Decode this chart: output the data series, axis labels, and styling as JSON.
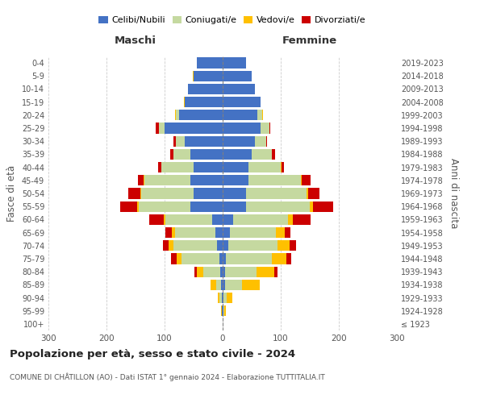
{
  "age_groups": [
    "100+",
    "95-99",
    "90-94",
    "85-89",
    "80-84",
    "75-79",
    "70-74",
    "65-69",
    "60-64",
    "55-59",
    "50-54",
    "45-49",
    "40-44",
    "35-39",
    "30-34",
    "25-29",
    "20-24",
    "15-19",
    "10-14",
    "5-9",
    "0-4"
  ],
  "birth_years": [
    "≤ 1923",
    "1924-1928",
    "1929-1933",
    "1934-1938",
    "1939-1943",
    "1944-1948",
    "1949-1953",
    "1954-1958",
    "1959-1963",
    "1964-1968",
    "1969-1973",
    "1974-1978",
    "1979-1983",
    "1984-1988",
    "1989-1993",
    "1994-1998",
    "1999-2003",
    "2004-2008",
    "2009-2013",
    "2014-2018",
    "2019-2023"
  ],
  "male": {
    "single": [
      0,
      1,
      2,
      3,
      4,
      6,
      10,
      12,
      18,
      55,
      50,
      55,
      50,
      55,
      65,
      100,
      75,
      65,
      60,
      50,
      45
    ],
    "married": [
      0,
      1,
      3,
      8,
      30,
      65,
      75,
      70,
      80,
      90,
      90,
      80,
      55,
      30,
      15,
      10,
      5,
      0,
      0,
      0,
      0
    ],
    "widowed": [
      0,
      1,
      3,
      10,
      10,
      8,
      8,
      5,
      3,
      2,
      2,
      1,
      1,
      0,
      0,
      0,
      2,
      2,
      0,
      2,
      0
    ],
    "divorced": [
      0,
      0,
      0,
      0,
      5,
      10,
      10,
      12,
      25,
      30,
      20,
      10,
      5,
      5,
      5,
      5,
      0,
      0,
      0,
      0,
      0
    ]
  },
  "female": {
    "single": [
      0,
      1,
      2,
      4,
      4,
      5,
      10,
      12,
      18,
      40,
      40,
      45,
      45,
      50,
      55,
      65,
      60,
      65,
      55,
      50,
      40
    ],
    "married": [
      0,
      2,
      5,
      30,
      55,
      80,
      85,
      80,
      95,
      110,
      105,
      90,
      55,
      35,
      20,
      15,
      8,
      0,
      0,
      0,
      0
    ],
    "widowed": [
      0,
      2,
      10,
      30,
      30,
      25,
      20,
      15,
      8,
      5,
      2,
      1,
      1,
      0,
      0,
      0,
      2,
      0,
      0,
      0,
      0
    ],
    "divorced": [
      0,
      0,
      0,
      0,
      5,
      8,
      12,
      10,
      30,
      35,
      20,
      15,
      5,
      5,
      2,
      2,
      0,
      0,
      0,
      0,
      0
    ]
  },
  "colors": {
    "single": "#4472c4",
    "married": "#c5d9a0",
    "widowed": "#ffc000",
    "divorced": "#cc0000"
  },
  "title": "Popolazione per età, sesso e stato civile - 2024",
  "subtitle": "COMUNE DI CHÂTILLON (AO) - Dati ISTAT 1° gennaio 2024 - Elaborazione TUTTITALIA.IT",
  "ylabel_left": "Fasce di età",
  "ylabel_right": "Anni di nascita",
  "xlim": 300,
  "background_color": "#ffffff",
  "grid_color": "#cccccc"
}
